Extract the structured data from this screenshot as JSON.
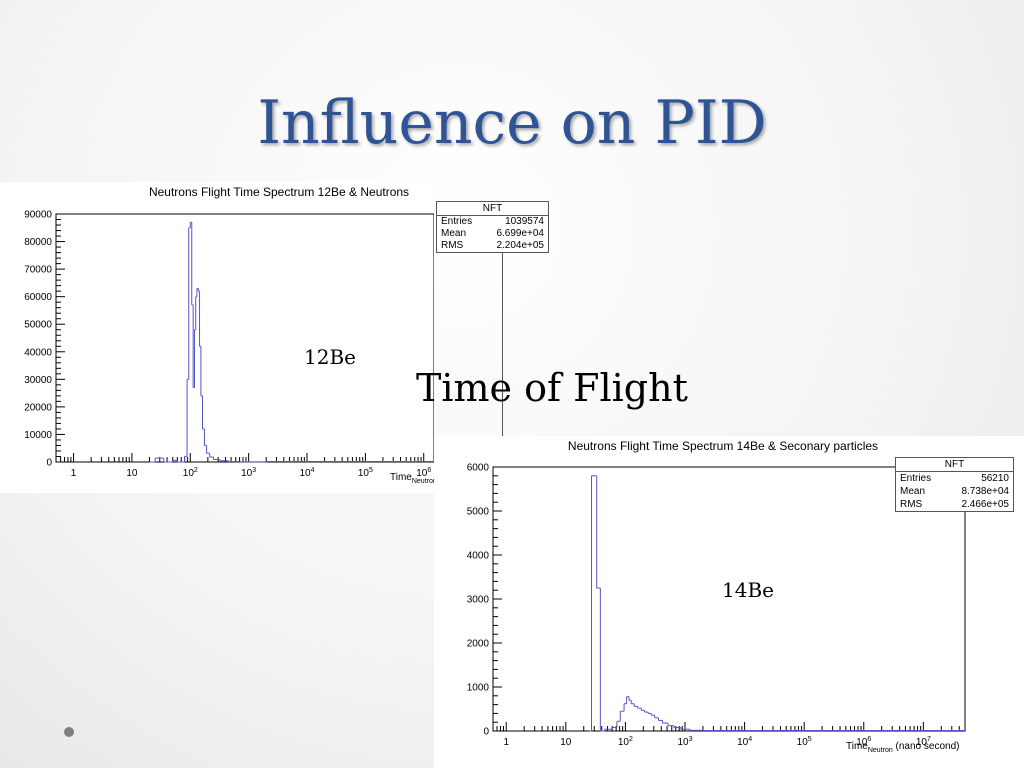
{
  "slide": {
    "title": "Influence on PID",
    "label_12be": "12Be",
    "label_14be": "14Be",
    "label_tof": "Time of Flight"
  },
  "colors": {
    "title": "#2f5496",
    "histogram": "#5555cc",
    "axis": "#000000"
  },
  "chart_data": [
    {
      "type": "histogram",
      "title": "Neutrons Flight Time Spectrum 12Be & Neutrons",
      "xlabel": "Time",
      "xlabel_sub": "Neutron",
      "xscale": "log",
      "xlim": [
        0.5,
        1500000
      ],
      "ylim": [
        0,
        90000
      ],
      "x_ticks": [
        {
          "v": 1,
          "base": "1",
          "exp": ""
        },
        {
          "v": 10,
          "base": "10",
          "exp": ""
        },
        {
          "v": 100,
          "base": "10",
          "exp": "2"
        },
        {
          "v": 1000,
          "base": "10",
          "exp": "3"
        },
        {
          "v": 10000,
          "base": "10",
          "exp": "4"
        },
        {
          "v": 100000,
          "base": "10",
          "exp": "5"
        },
        {
          "v": 1000000,
          "base": "10",
          "exp": "6"
        }
      ],
      "y_ticks": [
        0,
        10000,
        20000,
        30000,
        40000,
        50000,
        60000,
        70000,
        80000,
        90000
      ],
      "bins": [
        [
          20,
          0
        ],
        [
          25,
          1400
        ],
        [
          32,
          1400
        ],
        [
          35,
          0
        ],
        [
          50,
          600
        ],
        [
          60,
          0
        ],
        [
          80,
          2000
        ],
        [
          88,
          30000
        ],
        [
          94,
          85000
        ],
        [
          100,
          87000
        ],
        [
          106,
          57000
        ],
        [
          112,
          27000
        ],
        [
          118,
          48000
        ],
        [
          124,
          60000
        ],
        [
          130,
          63000
        ],
        [
          137,
          62000
        ],
        [
          144,
          42000
        ],
        [
          152,
          24000
        ],
        [
          162,
          12000
        ],
        [
          175,
          6000
        ],
        [
          190,
          3200
        ],
        [
          215,
          1800
        ],
        [
          250,
          900
        ],
        [
          320,
          450
        ],
        [
          450,
          150
        ],
        [
          700,
          50
        ],
        [
          2000,
          0
        ]
      ],
      "stats": {
        "name": "NFT",
        "entries_label": "Entries",
        "entries": "1039574",
        "mean_label": "Mean",
        "mean": "6.699e+04",
        "rms_label": "RMS",
        "rms": "2.204e+05"
      }
    },
    {
      "type": "histogram",
      "title": "Neutrons Flight Time Spectrum 14Be & Seconary particles",
      "xlabel": "Time",
      "xlabel_sub": "Neutron",
      "xlabel_unit": "(nano second)",
      "xscale": "log",
      "xlim": [
        0.6,
        50000000
      ],
      "ylim": [
        0,
        6000
      ],
      "x_ticks": [
        {
          "v": 1,
          "base": "1",
          "exp": ""
        },
        {
          "v": 10,
          "base": "10",
          "exp": ""
        },
        {
          "v": 100,
          "base": "10",
          "exp": "2"
        },
        {
          "v": 1000,
          "base": "10",
          "exp": "3"
        },
        {
          "v": 10000,
          "base": "10",
          "exp": "4"
        },
        {
          "v": 100000,
          "base": "10",
          "exp": "5"
        },
        {
          "v": 1000000,
          "base": "10",
          "exp": "6"
        },
        {
          "v": 10000000,
          "base": "10",
          "exp": "7"
        }
      ],
      "y_ticks": [
        0,
        1000,
        2000,
        3000,
        4000,
        5000,
        6000
      ],
      "bins": [
        [
          25,
          0
        ],
        [
          27,
          5800
        ],
        [
          33,
          3250
        ],
        [
          38,
          0
        ],
        [
          45,
          40
        ],
        [
          60,
          80
        ],
        [
          72,
          220
        ],
        [
          82,
          450
        ],
        [
          95,
          620
        ],
        [
          105,
          780
        ],
        [
          115,
          700
        ],
        [
          125,
          620
        ],
        [
          140,
          560
        ],
        [
          160,
          520
        ],
        [
          185,
          470
        ],
        [
          210,
          430
        ],
        [
          240,
          400
        ],
        [
          270,
          360
        ],
        [
          310,
          300
        ],
        [
          360,
          240
        ],
        [
          420,
          180
        ],
        [
          520,
          120
        ],
        [
          650,
          80
        ],
        [
          850,
          40
        ],
        [
          1200,
          15
        ],
        [
          2000,
          0
        ]
      ],
      "stats": {
        "name": "NFT",
        "entries_label": "Entries",
        "entries": "56210",
        "mean_label": "Mean",
        "mean": "8.738e+04",
        "rms_label": "RMS",
        "rms": "2.466e+05"
      }
    }
  ]
}
